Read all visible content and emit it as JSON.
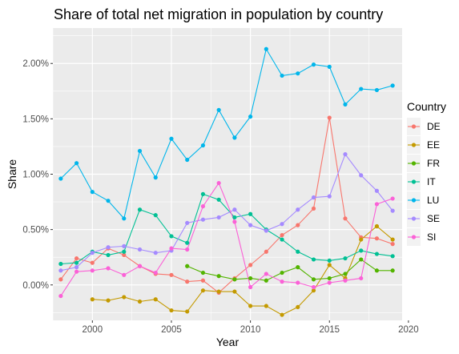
{
  "chart_data": {
    "type": "line",
    "title": "Share of total net migration in population by country",
    "xlabel": "Year",
    "ylabel": "Share",
    "xlim": [
      1997.5,
      2019.6
    ],
    "ylim": [
      -0.0032,
      0.0232
    ],
    "x_ticks": [
      2000,
      2005,
      2010,
      2015,
      2020
    ],
    "x_tick_labels": [
      "2000",
      "2005",
      "2010",
      "2015",
      "2020"
    ],
    "y_ticks": [
      0.0,
      0.005,
      0.01,
      0.015,
      0.02
    ],
    "y_tick_labels": [
      "0.00%",
      "0.50%",
      "1.00%",
      "1.50%",
      "2.00%"
    ],
    "grid": true,
    "legend_position": "right",
    "legend_title": "Country",
    "series": [
      {
        "name": "DE",
        "color": "#F8766D",
        "x": [
          1998,
          1999,
          2000,
          2001,
          2002,
          2003,
          2004,
          2005,
          2006,
          2007,
          2008,
          2009,
          2010,
          2011,
          2012,
          2013,
          2014,
          2015,
          2016,
          2017,
          2018,
          2019
        ],
        "y": [
          0.0005,
          0.0024,
          0.002,
          0.0033,
          0.0027,
          0.0017,
          0.001,
          0.0009,
          0.0003,
          0.0004,
          -0.0007,
          0.0006,
          0.0018,
          0.003,
          0.0045,
          0.0054,
          0.0069,
          0.0151,
          0.006,
          0.0043,
          0.0042,
          0.0037
        ]
      },
      {
        "name": "EE",
        "color": "#C49A00",
        "x": [
          2000,
          2001,
          2002,
          2003,
          2004,
          2005,
          2006,
          2007,
          2008,
          2009,
          2010,
          2011,
          2012,
          2013,
          2014,
          2015,
          2016,
          2017,
          2018,
          2019
        ],
        "y": [
          -0.0013,
          -0.0014,
          -0.0011,
          -0.0015,
          -0.0013,
          -0.0023,
          -0.0024,
          -0.0005,
          -0.0006,
          -0.0006,
          -0.0019,
          -0.0019,
          -0.0027,
          -0.002,
          -0.0005,
          0.0018,
          0.0006,
          0.0041,
          0.0053,
          0.0041
        ]
      },
      {
        "name": "FR",
        "color": "#53B400",
        "x": [
          2006,
          2007,
          2008,
          2009,
          2010,
          2011,
          2012,
          2013,
          2014,
          2015,
          2016,
          2017,
          2018,
          2019
        ],
        "y": [
          0.0017,
          0.0011,
          0.0008,
          0.0005,
          0.0006,
          0.0004,
          0.0011,
          0.0016,
          0.0005,
          0.0006,
          0.001,
          0.0023,
          0.0013,
          0.0013
        ]
      },
      {
        "name": "IT",
        "color": "#00C094",
        "x": [
          1998,
          1999,
          2000,
          2001,
          2002,
          2003,
          2004,
          2005,
          2006,
          2007,
          2008,
          2009,
          2010,
          2011,
          2012,
          2013,
          2014,
          2015,
          2016,
          2017,
          2018,
          2019
        ],
        "y": [
          0.0019,
          0.002,
          0.003,
          0.0027,
          0.003,
          0.0068,
          0.0063,
          0.0044,
          0.0038,
          0.0082,
          0.0077,
          0.0061,
          0.0064,
          0.005,
          0.0041,
          0.003,
          0.0023,
          0.0022,
          0.0024,
          0.0031,
          0.0028,
          0.0026
        ]
      },
      {
        "name": "LU",
        "color": "#00B6EB",
        "x": [
          1998,
          1999,
          2000,
          2001,
          2002,
          2003,
          2004,
          2005,
          2006,
          2007,
          2008,
          2009,
          2010,
          2011,
          2012,
          2013,
          2014,
          2015,
          2016,
          2017,
          2018,
          2019
        ],
        "y": [
          0.0096,
          0.011,
          0.0084,
          0.0076,
          0.006,
          0.0121,
          0.0097,
          0.0132,
          0.0113,
          0.0126,
          0.0158,
          0.0133,
          0.0152,
          0.0213,
          0.0189,
          0.0191,
          0.0199,
          0.0197,
          0.0163,
          0.0177,
          0.0176,
          0.018
        ]
      },
      {
        "name": "SE",
        "color": "#A58AFF",
        "x": [
          1998,
          1999,
          2000,
          2001,
          2002,
          2003,
          2004,
          2005,
          2006,
          2007,
          2008,
          2009,
          2010,
          2011,
          2012,
          2013,
          2014,
          2015,
          2016,
          2017,
          2018,
          2019
        ],
        "y": [
          0.0013,
          0.0016,
          0.0029,
          0.0034,
          0.0035,
          0.0032,
          0.0029,
          0.0031,
          0.0056,
          0.0059,
          0.0061,
          0.0068,
          0.0054,
          0.0049,
          0.0055,
          0.0068,
          0.0079,
          0.008,
          0.0118,
          0.0099,
          0.0085,
          0.0067
        ]
      },
      {
        "name": "SI",
        "color": "#FB61D7",
        "x": [
          1998,
          1999,
          2000,
          2001,
          2002,
          2003,
          2004,
          2005,
          2006,
          2007,
          2008,
          2009,
          2010,
          2011,
          2012,
          2013,
          2014,
          2015,
          2016,
          2017,
          2018,
          2019
        ],
        "y": [
          -0.001,
          0.0012,
          0.0013,
          0.0015,
          0.0009,
          0.0017,
          0.0011,
          0.0033,
          0.0032,
          0.0071,
          0.0092,
          0.0057,
          -0.0002,
          0.001,
          0.0003,
          0.0002,
          -0.0002,
          0.0002,
          0.0004,
          0.0006,
          0.0073,
          0.0078
        ]
      }
    ]
  }
}
